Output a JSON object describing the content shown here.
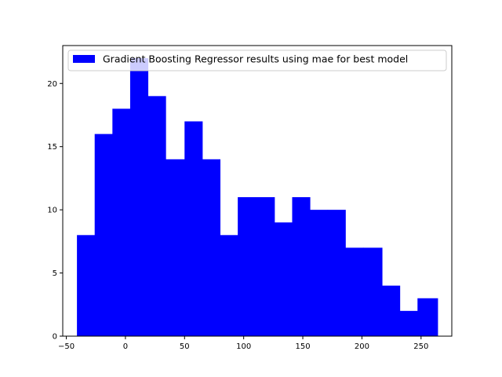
{
  "chart_data": {
    "type": "bar",
    "subtype": "histogram",
    "bin_edges": [
      -41,
      -26,
      -11,
      4,
      19,
      34,
      50,
      65,
      80,
      95,
      110,
      126,
      141,
      156,
      171,
      186,
      201,
      217,
      232,
      247,
      264
    ],
    "values": [
      8,
      16,
      18,
      22,
      19,
      14,
      17,
      14,
      8,
      11,
      11,
      9,
      11,
      10,
      10,
      7,
      7,
      4,
      2,
      3
    ],
    "xlim": [
      -53,
      276
    ],
    "ylim": [
      0,
      23
    ],
    "xticks": [
      -50,
      0,
      50,
      100,
      150,
      200,
      250
    ],
    "yticks": [
      0,
      5,
      10,
      15,
      20
    ],
    "xtick_labels": [
      "−50",
      "0",
      "50",
      "100",
      "150",
      "200",
      "250"
    ],
    "ytick_labels": [
      "0",
      "5",
      "10",
      "15",
      "20"
    ],
    "legend": {
      "label": "Gradient Boosting Regressor results using mae for best model",
      "position": "upper-right"
    },
    "bar_color": "#0000ff",
    "grid": false
  }
}
